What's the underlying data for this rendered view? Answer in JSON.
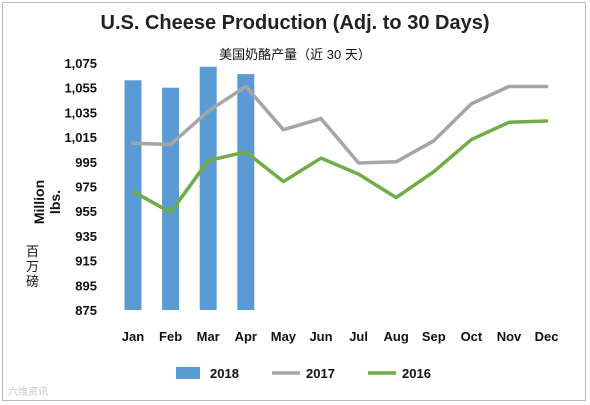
{
  "chart_data": {
    "type": "bar",
    "title": "U.S. Cheese Production (Adj. to 30 Days)",
    "subtitle": "美国奶酪产量（近 30 天）",
    "ylabel": "Million lbs.",
    "ylabel_note": "百万磅",
    "ylim": [
      875,
      1075
    ],
    "yticks": [
      "1,075",
      "1,055",
      "1,035",
      "1,015",
      "995",
      "975",
      "955",
      "935",
      "915",
      "895",
      "875"
    ],
    "categories": [
      "Jan",
      "Feb",
      "Mar",
      "Apr",
      "May",
      "Jun",
      "Jul",
      "Aug",
      "Sep",
      "Oct",
      "Nov",
      "Dec"
    ],
    "grid": false,
    "legend_position": "bottom",
    "series": [
      {
        "name": "2018",
        "type": "bar",
        "color": "#5b9bd5",
        "values": [
          1061,
          1055,
          1072,
          1066,
          null,
          null,
          null,
          null,
          null,
          null,
          null,
          null
        ]
      },
      {
        "name": "2017",
        "type": "line",
        "color": "#a5a5a5",
        "values": [
          1010,
          1009,
          1036,
          1056,
          1021,
          1030,
          994,
          995,
          1012,
          1042,
          1056,
          1056
        ]
      },
      {
        "name": "2016",
        "type": "line",
        "color": "#70ad47",
        "values": [
          971,
          954,
          996,
          1003,
          979,
          998,
          985,
          966,
          987,
          1013,
          1027,
          1028
        ]
      }
    ]
  },
  "watermark": "六维资讯"
}
